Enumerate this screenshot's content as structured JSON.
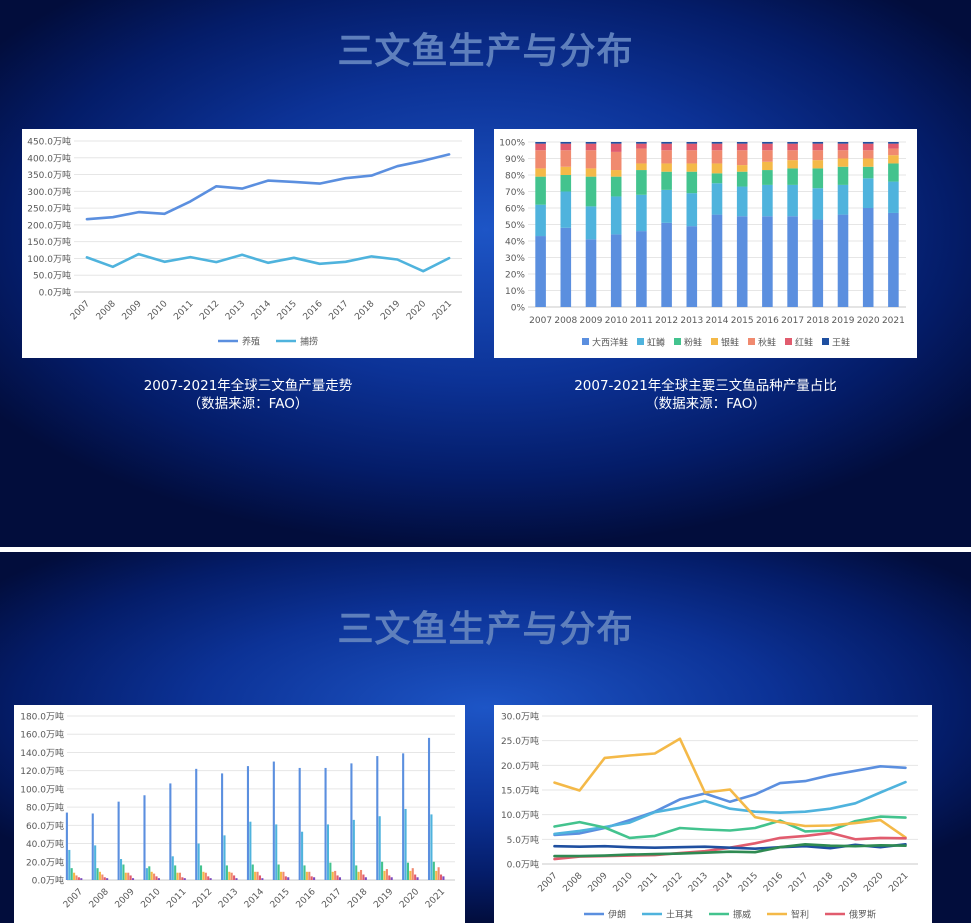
{
  "slide1": {
    "title": "三文鱼生产与分布",
    "caption_left": [
      "2007-2021年全球三文鱼产量走势",
      "（数据来源：FAO）"
    ],
    "caption_right": [
      "2007-2021年全球主要三文鱼品种产量占比",
      "（数据来源：FAO）"
    ]
  },
  "slide2": {
    "title": "三文鱼生产与分布"
  },
  "chart_data": [
    {
      "type": "line",
      "x": [
        "2007",
        "2008",
        "2009",
        "2010",
        "2011",
        "2012",
        "2013",
        "2014",
        "2015",
        "2016",
        "2017",
        "2018",
        "2019",
        "2020",
        "2021"
      ],
      "ylim": [
        0,
        450
      ],
      "yticks": [
        "0.0万吨",
        "50.0万吨",
        "100.0万吨",
        "150.0万吨",
        "200.0万吨",
        "250.0万吨",
        "300.0万吨",
        "350.0万吨",
        "400.0万吨",
        "450.0万吨"
      ],
      "series": [
        {
          "name": "养殖",
          "color": "#5b8fdf",
          "values": [
            217,
            223,
            238,
            233,
            270,
            315,
            308,
            332,
            328,
            323,
            339,
            347,
            375,
            391,
            410
          ]
        },
        {
          "name": "捕捞",
          "color": "#4fb3dd",
          "values": [
            103,
            75,
            113,
            90,
            104,
            89,
            111,
            87,
            102,
            84,
            90,
            106,
            97,
            62,
            101
          ]
        }
      ],
      "legend": "bottom"
    },
    {
      "type": "bar",
      "stacked": true,
      "percent": true,
      "categories": [
        "2007",
        "2008",
        "2009",
        "2010",
        "2011",
        "2012",
        "2013",
        "2014",
        "2015",
        "2016",
        "2017",
        "2018",
        "2019",
        "2020",
        "2021"
      ],
      "ylim": [
        0,
        100
      ],
      "yticks": [
        "0%",
        "10%",
        "20%",
        "30%",
        "40%",
        "50%",
        "60%",
        "70%",
        "80%",
        "90%",
        "100%"
      ],
      "series": [
        {
          "name": "大西洋鲑",
          "color": "#5b8fdf",
          "values": [
            43,
            48,
            41,
            44,
            46,
            51,
            49,
            56,
            55,
            55,
            55,
            53,
            56,
            60,
            57
          ]
        },
        {
          "name": "虹鳟",
          "color": "#4fb3dd",
          "values": [
            19,
            22,
            20,
            23,
            22,
            20,
            20,
            19,
            18,
            19,
            19,
            19,
            18,
            18,
            19
          ]
        },
        {
          "name": "粉鲑",
          "color": "#43c38e",
          "values": [
            17,
            10,
            18,
            12,
            15,
            11,
            13,
            6,
            9,
            9,
            10,
            12,
            11,
            7,
            11
          ]
        },
        {
          "name": "银鲑",
          "color": "#f4b948",
          "values": [
            5,
            5,
            5,
            4,
            4,
            5,
            5,
            6,
            4,
            5,
            5,
            5,
            5,
            5,
            5
          ]
        },
        {
          "name": "秋鲑",
          "color": "#f08a6f",
          "values": [
            11,
            10,
            11,
            11,
            9,
            8,
            8,
            8,
            9,
            7,
            6,
            6,
            5,
            5,
            4
          ]
        },
        {
          "name": "红鲑",
          "color": "#e15c6e",
          "values": [
            4,
            4,
            4,
            5,
            3,
            4,
            4,
            4,
            4,
            4,
            4,
            4,
            4,
            4,
            3
          ]
        },
        {
          "name": "王鲑",
          "color": "#1f4fa0",
          "values": [
            1,
            1,
            1,
            1,
            1,
            1,
            1,
            1,
            1,
            1,
            1,
            1,
            1,
            1,
            1
          ]
        }
      ],
      "legend": "bottom"
    },
    {
      "type": "bar",
      "categories": [
        "2007",
        "2008",
        "2009",
        "2010",
        "2011",
        "2012",
        "2013",
        "2014",
        "2015",
        "2016",
        "2017",
        "2018",
        "2019",
        "2020",
        "2021"
      ],
      "ylim": [
        0,
        180
      ],
      "yticks": [
        "0.0万吨",
        "20.0万吨",
        "40.0万吨",
        "60.0万吨",
        "80.0万吨",
        "100.0万吨",
        "120.0万吨",
        "140.0万吨",
        "160.0万吨",
        "180.0万吨"
      ],
      "series": [
        {
          "color": "#5b8fdf",
          "values": [
            74,
            73,
            86,
            93,
            106,
            122,
            117,
            125,
            130,
            123,
            123,
            128,
            136,
            139,
            156
          ]
        },
        {
          "color": "#4fb3dd",
          "values": [
            33,
            38,
            23,
            13,
            26,
            40,
            49,
            64,
            61,
            53,
            61,
            66,
            70,
            78,
            72
          ]
        },
        {
          "color": "#43c38e",
          "values": [
            13,
            13,
            17,
            15,
            16,
            16,
            16,
            17,
            17,
            16,
            19,
            16,
            20,
            19,
            20
          ]
        },
        {
          "color": "#f4b948",
          "values": [
            8,
            9,
            8,
            9,
            8,
            9,
            9,
            9,
            9,
            9,
            9,
            9,
            10,
            10,
            10
          ]
        },
        {
          "color": "#f08a6f",
          "values": [
            5,
            6,
            8,
            7,
            8,
            8,
            8,
            9,
            9,
            9,
            10,
            11,
            12,
            13,
            14
          ]
        },
        {
          "color": "#e15c6e",
          "values": [
            3,
            3,
            5,
            4,
            3,
            4,
            5,
            5,
            4,
            4,
            5,
            6,
            5,
            6,
            6
          ]
        },
        {
          "color": "#7d4bbd",
          "values": [
            2,
            2,
            2,
            2,
            2,
            2,
            2,
            2,
            3,
            3,
            3,
            3,
            3,
            3,
            4
          ]
        }
      ]
    },
    {
      "type": "line",
      "x": [
        "2007",
        "2008",
        "2009",
        "2010",
        "2011",
        "2012",
        "2013",
        "2014",
        "2015",
        "2016",
        "2017",
        "2018",
        "2019",
        "2020",
        "2021"
      ],
      "ylim": [
        0,
        30
      ],
      "yticks": [
        "0.0万吨",
        "5.0万吨",
        "10.0万吨",
        "15.0万吨",
        "20.0万吨",
        "25.0万吨",
        "30.0万吨"
      ],
      "series": [
        {
          "name": "伊朗",
          "color": "#5b8fdf",
          "values": [
            5.9,
            6.2,
            7.3,
            8.9,
            10.6,
            13.1,
            14.3,
            12.6,
            14.1,
            16.4,
            16.8,
            18.0,
            18.9,
            19.8,
            19.5
          ]
        },
        {
          "name": "土耳其",
          "color": "#4fb3dd",
          "values": [
            6.1,
            6.7,
            7.5,
            8.4,
            10.5,
            11.4,
            12.8,
            11.2,
            10.6,
            10.4,
            10.6,
            11.2,
            12.3,
            14.5,
            16.6
          ]
        },
        {
          "name": "挪威",
          "color": "#43c38e",
          "values": [
            7.6,
            8.5,
            7.4,
            5.3,
            5.7,
            7.3,
            7.0,
            6.8,
            7.3,
            8.8,
            6.6,
            6.8,
            8.7,
            9.6,
            9.4
          ]
        },
        {
          "name": "智利",
          "color": "#f4b948",
          "values": [
            16.5,
            14.9,
            21.5,
            22.0,
            22.4,
            25.4,
            14.5,
            15.1,
            9.5,
            8.5,
            7.7,
            7.8,
            8.3,
            8.9,
            5.4
          ]
        },
        {
          "name": "俄罗斯",
          "color": "#e15c6e",
          "values": [
            1.0,
            1.5,
            1.6,
            1.7,
            1.8,
            2.2,
            2.6,
            3.3,
            4.2,
            5.3,
            5.7,
            6.3,
            5.0,
            5.3,
            5.2
          ]
        },
        {
          "color": "#1f4fa0",
          "values": [
            3.6,
            3.5,
            3.6,
            3.4,
            3.3,
            3.4,
            3.5,
            3.3,
            3.1,
            3.4,
            3.6,
            3.2,
            3.9,
            3.4,
            4.0
          ]
        },
        {
          "color": "#2f8a52",
          "values": [
            1.6,
            1.6,
            1.7,
            1.9,
            2.0,
            2.1,
            2.3,
            2.5,
            2.4,
            3.4,
            4.0,
            3.7,
            3.6,
            3.8,
            3.7
          ]
        }
      ],
      "legend": "bottom"
    }
  ]
}
